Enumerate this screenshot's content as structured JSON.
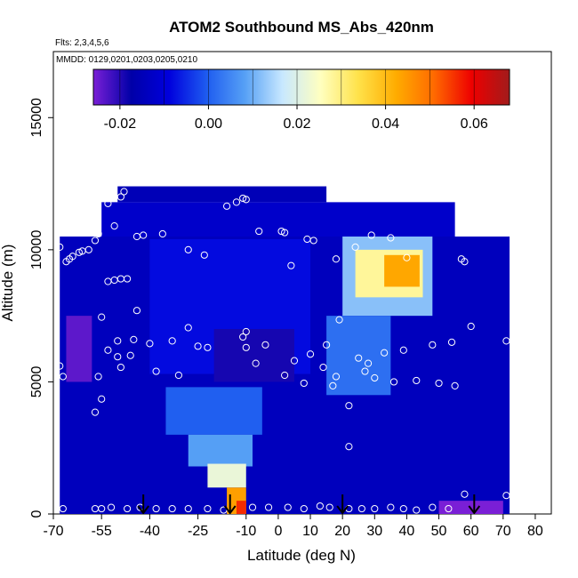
{
  "chart_data": {
    "type": "heatmap",
    "title": "ATOM2 Southbound MS_Abs_420nm",
    "annotations": [
      "Flts: 2,3,4,5,6",
      "MMDD: 0129,0201,0203,0205,0210"
    ],
    "xlabel": "Latitude (deg N)",
    "ylabel": "Altitude (m)",
    "xlim": [
      -70,
      85
    ],
    "ylim": [
      0,
      17500
    ],
    "x_ticks": [
      -70,
      -55,
      -40,
      -25,
      -10,
      0,
      10,
      20,
      30,
      40,
      50,
      60,
      70,
      80
    ],
    "x_tick_labels": [
      "-70",
      "-55",
      "-40",
      "-25",
      "-10",
      "0",
      "10",
      "20",
      "30",
      "40",
      "50",
      "60",
      "70",
      "80"
    ],
    "y_ticks": [
      0,
      5000,
      10000,
      15000
    ],
    "y_tick_labels": [
      "0",
      "5000",
      "10000",
      "15000"
    ],
    "colorbar": {
      "range": [
        -0.026,
        0.068
      ],
      "ticks": [
        -0.02,
        0.0,
        0.02,
        0.04,
        0.06
      ],
      "tick_labels": [
        "-0.02",
        "0.00",
        "0.02",
        "0.04",
        "0.06"
      ],
      "colors": [
        "#7a1fd6",
        "#0000a8",
        "#0000dd",
        "#1e5cf0",
        "#56a0f5",
        "#c8e8ff",
        "#ffffc0",
        "#ffe24a",
        "#ffac00",
        "#ff6a00",
        "#ee0000",
        "#a11b1b"
      ]
    },
    "field_regions": [
      {
        "lat": [
          -68,
          72
        ],
        "alt": [
          0,
          10500
        ],
        "value": -0.014
      },
      {
        "lat": [
          -55,
          55
        ],
        "alt": [
          10500,
          11800
        ],
        "value": -0.012
      },
      {
        "lat": [
          -50,
          15
        ],
        "alt": [
          11800,
          12400
        ],
        "value": -0.015
      },
      {
        "lat": [
          -40,
          10
        ],
        "alt": [
          5300,
          10400
        ],
        "value": -0.008
      },
      {
        "lat": [
          -66,
          -58
        ],
        "alt": [
          5000,
          7500
        ],
        "value": -0.024
      },
      {
        "lat": [
          -20,
          5
        ],
        "alt": [
          5000,
          7000
        ],
        "value": -0.019
      },
      {
        "lat": [
          20,
          48
        ],
        "alt": [
          7500,
          10500
        ],
        "value": 0.012
      },
      {
        "lat": [
          24,
          45
        ],
        "alt": [
          8200,
          10000
        ],
        "value": 0.028
      },
      {
        "lat": [
          33,
          44
        ],
        "alt": [
          8600,
          9800
        ],
        "value": 0.043
      },
      {
        "lat": [
          15,
          35
        ],
        "alt": [
          4500,
          7500
        ],
        "value": 0.002
      },
      {
        "lat": [
          -35,
          -5
        ],
        "alt": [
          3000,
          4800
        ],
        "value": 0.0
      },
      {
        "lat": [
          -28,
          -8
        ],
        "alt": [
          1800,
          3000
        ],
        "value": 0.008
      },
      {
        "lat": [
          -22,
          -10
        ],
        "alt": [
          1000,
          1900
        ],
        "value": 0.022
      },
      {
        "lat": [
          -16,
          -10
        ],
        "alt": [
          0,
          1000
        ],
        "value": 0.044
      },
      {
        "lat": [
          -13,
          -10
        ],
        "alt": [
          0,
          500
        ],
        "value": 0.056
      },
      {
        "lat": [
          50,
          70
        ],
        "alt": [
          0,
          500
        ],
        "value": -0.026
      }
    ],
    "flight_points": [
      [
        -68,
        10100
      ],
      [
        -68,
        5600
      ],
      [
        -67,
        5200
      ],
      [
        -66,
        9550
      ],
      [
        -65,
        9650
      ],
      [
        -64,
        9750
      ],
      [
        -62,
        9900
      ],
      [
        -61,
        9950
      ],
      [
        -59,
        10000
      ],
      [
        -57,
        10350
      ],
      [
        -56,
        10600
      ],
      [
        -53,
        11750
      ],
      [
        -51,
        10900
      ],
      [
        -49,
        12000
      ],
      [
        -48,
        12200
      ],
      [
        -44,
        10500
      ],
      [
        -42,
        10550
      ],
      [
        -36,
        10600
      ],
      [
        -28,
        10000
      ],
      [
        -23,
        9800
      ],
      [
        -16,
        11650
      ],
      [
        -13,
        11800
      ],
      [
        -11,
        11950
      ],
      [
        -10,
        11900
      ],
      [
        -6,
        10700
      ],
      [
        1,
        10700
      ],
      [
        2,
        10650
      ],
      [
        4,
        9400
      ],
      [
        9,
        10400
      ],
      [
        11,
        10350
      ],
      [
        18,
        9650
      ],
      [
        24,
        10100
      ],
      [
        29,
        10550
      ],
      [
        35,
        10450
      ],
      [
        40,
        9700
      ],
      [
        57,
        9650
      ],
      [
        58,
        9550
      ],
      [
        67,
        11300
      ],
      [
        70,
        11250
      ],
      [
        -53,
        8800
      ],
      [
        -51,
        8850
      ],
      [
        -49,
        8900
      ],
      [
        -47,
        8900
      ],
      [
        -44,
        7700
      ],
      [
        -55,
        7450
      ],
      [
        -28,
        7050
      ],
      [
        -10,
        6900
      ],
      [
        -11,
        6700
      ],
      [
        -53,
        6200
      ],
      [
        -50,
        6550
      ],
      [
        -45,
        6600
      ],
      [
        -40,
        6450
      ],
      [
        -33,
        6550
      ],
      [
        -25,
        6350
      ],
      [
        -22,
        6300
      ],
      [
        -10,
        6300
      ],
      [
        -7,
        5700
      ],
      [
        -4,
        6400
      ],
      [
        -50,
        5950
      ],
      [
        -46,
        6000
      ],
      [
        -49,
        5550
      ],
      [
        -38,
        5400
      ],
      [
        -31,
        5250
      ],
      [
        -56,
        5200
      ],
      [
        -55,
        4350
      ],
      [
        -57,
        3850
      ],
      [
        2,
        5250
      ],
      [
        5,
        5800
      ],
      [
        8,
        4950
      ],
      [
        10,
        6050
      ],
      [
        14,
        5550
      ],
      [
        15,
        6400
      ],
      [
        18,
        5200
      ],
      [
        19,
        7350
      ],
      [
        25,
        5900
      ],
      [
        27,
        5400
      ],
      [
        28,
        5700
      ],
      [
        30,
        5150
      ],
      [
        33,
        6100
      ],
      [
        36,
        5000
      ],
      [
        39,
        6200
      ],
      [
        43,
        5050
      ],
      [
        48,
        6400
      ],
      [
        50,
        4950
      ],
      [
        54,
        6500
      ],
      [
        55,
        4850
      ],
      [
        60,
        7100
      ],
      [
        71,
        6550
      ],
      [
        17,
        4850
      ],
      [
        22,
        4100
      ],
      [
        22,
        2550
      ],
      [
        -67,
        200
      ],
      [
        -57,
        200
      ],
      [
        -55,
        200
      ],
      [
        -52,
        250
      ],
      [
        -47,
        200
      ],
      [
        -43,
        250
      ],
      [
        -38,
        200
      ],
      [
        -33,
        200
      ],
      [
        -28,
        200
      ],
      [
        -22,
        200
      ],
      [
        -17,
        150
      ],
      [
        -8,
        250
      ],
      [
        -3,
        250
      ],
      [
        3,
        250
      ],
      [
        8,
        200
      ],
      [
        13,
        300
      ],
      [
        16,
        250
      ],
      [
        22,
        200
      ],
      [
        26,
        200
      ],
      [
        30,
        200
      ],
      [
        35,
        250
      ],
      [
        39,
        200
      ],
      [
        43,
        150
      ],
      [
        48,
        250
      ],
      [
        53,
        200
      ],
      [
        58,
        750
      ],
      [
        71,
        700
      ]
    ],
    "arrow_latitudes": [
      -42,
      -15,
      20,
      61
    ]
  }
}
